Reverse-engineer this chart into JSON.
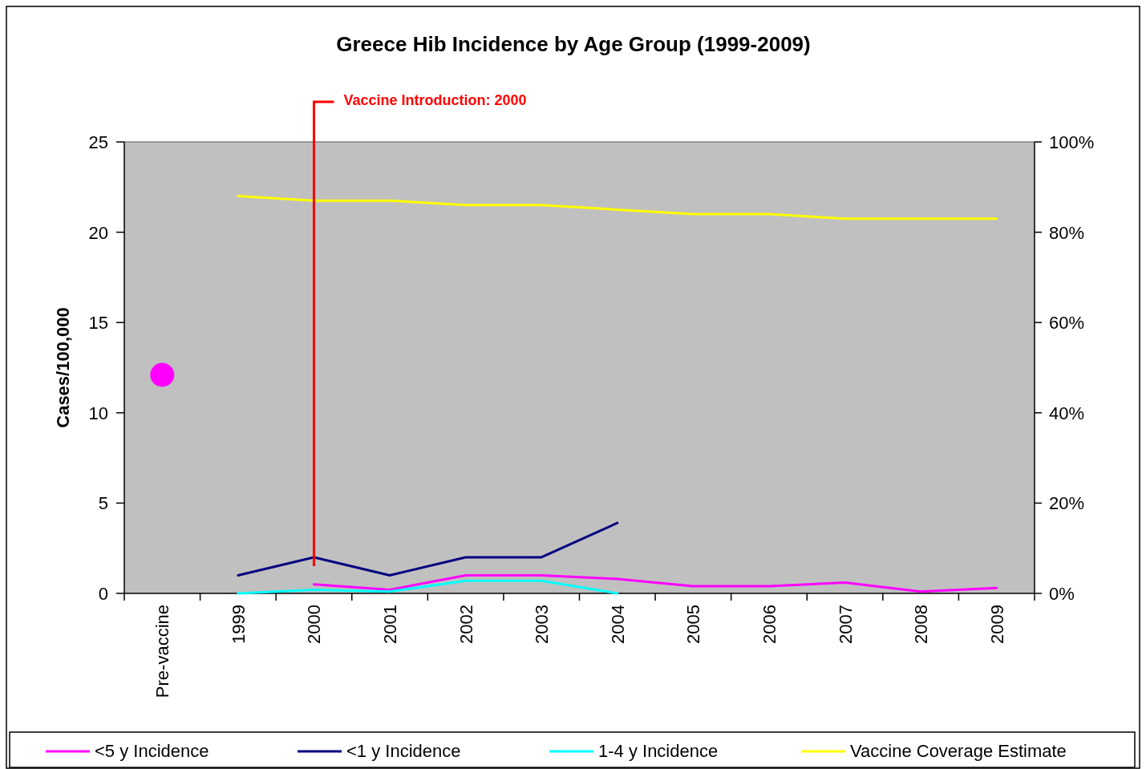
{
  "chart_data": {
    "type": "line",
    "title": "Greece Hib Incidence by Age Group (1999-2009)",
    "ylabel": "Cases/100,000",
    "categories": [
      "Pre-vaccine",
      "1999",
      "2000",
      "2001",
      "2002",
      "2003",
      "2004",
      "2005",
      "2006",
      "2007",
      "2008",
      "2009"
    ],
    "series": [
      {
        "name": "<5 y Incidence",
        "color": "#ff00ff",
        "values": [
          null,
          null,
          0.5,
          0.2,
          1.0,
          1.0,
          0.8,
          0.4,
          0.4,
          0.6,
          0.1,
          0.3
        ]
      },
      {
        "name": "<1 y Incidence",
        "color": "#000080",
        "values": [
          null,
          1.0,
          2.0,
          1.0,
          2.0,
          2.0,
          3.9,
          null,
          null,
          null,
          null,
          null
        ]
      },
      {
        "name": "1-4 y Incidence",
        "color": "#00ffff",
        "values": [
          null,
          0,
          0.2,
          0.1,
          0.7,
          0.7,
          0,
          null,
          null,
          null,
          null,
          null
        ]
      },
      {
        "name": "Vaccine Coverage Estimate",
        "color": "#ffff00",
        "axis": "y2",
        "values": [
          null,
          88,
          87,
          87,
          86,
          86,
          85,
          84,
          84,
          83,
          83,
          83
        ]
      },
      {
        "type": "scatter",
        "color": "#ff00ff",
        "marker": "circle",
        "values": [
          12.1,
          null,
          null,
          null,
          null,
          null,
          null,
          null,
          null,
          null,
          null,
          null
        ]
      }
    ],
    "ylim": [
      0,
      25
    ],
    "yticks": [
      0,
      5,
      10,
      15,
      20,
      25
    ],
    "y2lim": [
      0,
      100
    ],
    "y2ticks": [
      {
        "value": 0,
        "label": "0%"
      },
      {
        "value": 20,
        "label": "20%"
      },
      {
        "value": 40,
        "label": "40%"
      },
      {
        "value": 60,
        "label": "60%"
      },
      {
        "value": 80,
        "label": "80%"
      },
      {
        "value": 100,
        "label": "100%"
      }
    ],
    "ref_lines": [
      {
        "axis": "x",
        "value": "2000",
        "label": "Vaccine Introduction: 2000",
        "color": "#ff0000"
      }
    ],
    "legend": "bottom"
  }
}
